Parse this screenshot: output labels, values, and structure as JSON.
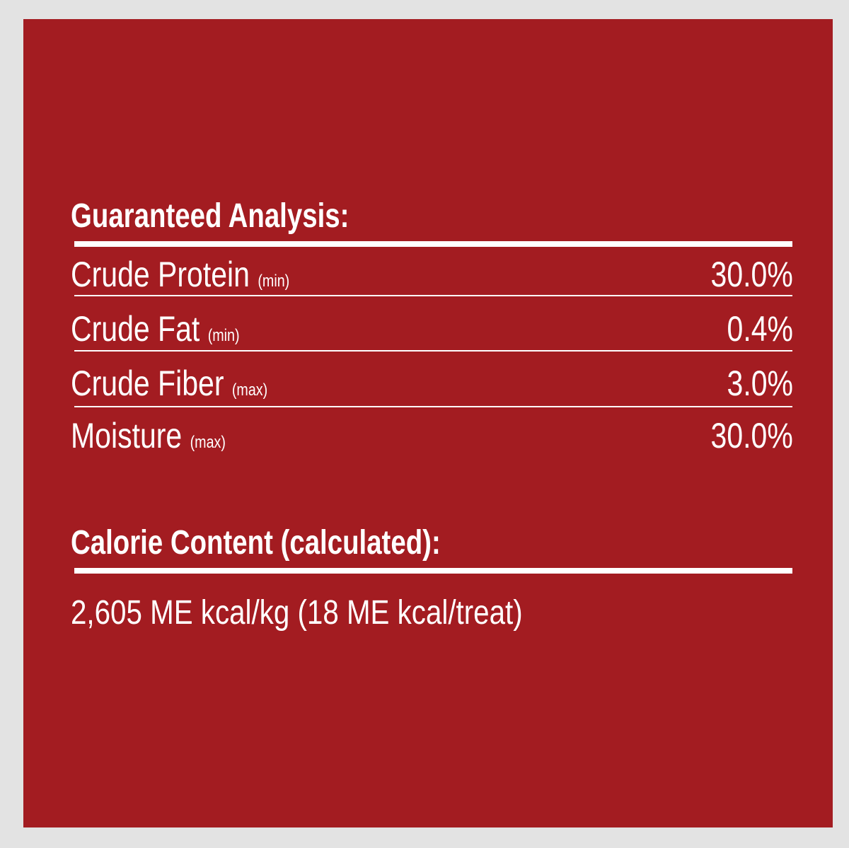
{
  "guaranteed_analysis": {
    "title": "Guaranteed Analysis:",
    "rows": [
      {
        "name": "Crude Protein",
        "qualifier": "(min)",
        "value": "30.0%"
      },
      {
        "name": "Crude Fat",
        "qualifier": "(min)",
        "value": "0.4%"
      },
      {
        "name": "Crude Fiber",
        "qualifier": "(max)",
        "value": "3.0%"
      },
      {
        "name": "Moisture",
        "qualifier": "(max)",
        "value": "30.0%"
      }
    ]
  },
  "calorie_content": {
    "title": "Calorie Content (calculated):",
    "value": "2,605 ME kcal/kg (18 ME kcal/treat)"
  },
  "colors": {
    "panel": "#a31c21",
    "background": "#e3e3e3",
    "text": "#ffffff"
  }
}
